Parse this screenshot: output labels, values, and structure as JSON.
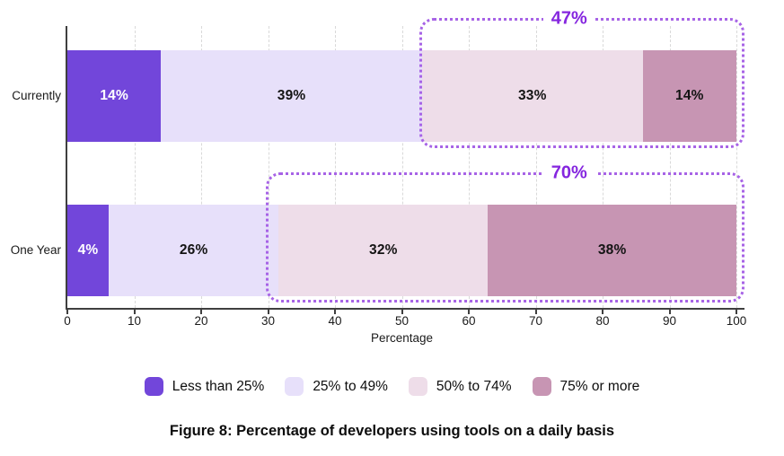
{
  "chart_data": {
    "type": "bar",
    "orientation": "horizontal",
    "stacked": true,
    "caption": "Figure 8: Percentage of developers using tools on a daily basis",
    "xlabel": "Percentage",
    "xlim": [
      0,
      100
    ],
    "x_ticks": [
      0,
      10,
      20,
      30,
      40,
      50,
      60,
      70,
      80,
      90,
      100
    ],
    "grid": "vertical-dashed",
    "legend_position": "bottom",
    "categories": [
      "Currently",
      "One Year"
    ],
    "series": [
      {
        "name": "Less than 25%",
        "color": "#7246da",
        "label_color": "#ffffff",
        "values": [
          14,
          4
        ]
      },
      {
        "name": "25% to 49%",
        "color": "#e7e0fa",
        "label_color": "#141414",
        "values": [
          39,
          26
        ]
      },
      {
        "name": "50% to 74%",
        "color": "#eedde9",
        "label_color": "#141414",
        "values": [
          33,
          32
        ]
      },
      {
        "name": "75% or more",
        "color": "#c795b3",
        "label_color": "#141414",
        "values": [
          14,
          38
        ]
      }
    ],
    "segment_label_suffix": "%",
    "annotations": [
      {
        "label": "47%",
        "category": "Currently",
        "covers_series": [
          "50% to 74%",
          "75% or more"
        ],
        "from": 53,
        "to": 100,
        "label_at": 75
      },
      {
        "label": "70%",
        "category": "One Year",
        "covers_series": [
          "50% to 74%",
          "75% or more"
        ],
        "from": 30,
        "to": 100,
        "label_at": 75
      }
    ],
    "colors": {
      "annotation_text": "#8526df",
      "annotation_border": "#a763e6",
      "axis": "#3f3f3f",
      "gridline": "#d9d9d9"
    }
  }
}
